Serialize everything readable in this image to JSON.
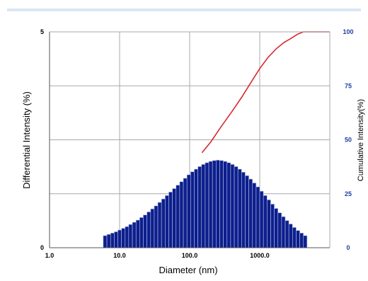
{
  "chart_data": {
    "type": "bar",
    "title": "",
    "xlabel": "Diameter (nm)",
    "ylabel": "Differential Intensity (%)",
    "y2label": "Cumulative Intensity(%)",
    "x_scale": "log",
    "xlim": [
      1,
      10000
    ],
    "ylim": [
      0,
      5
    ],
    "y2lim": [
      0,
      100
    ],
    "x_tick_labels": [
      "1.0",
      "10.0",
      "100.0",
      "1000.0"
    ],
    "y_tick_labels": [
      "0",
      "5"
    ],
    "y2_tick_labels": [
      "0",
      "25",
      "50",
      "75",
      "100"
    ],
    "grid": true,
    "colors": {
      "bars": "#0d1f8c",
      "bar_edge": "#b8c2e8",
      "cumulative": "#d8282f",
      "right_axis_text": "#1f3ea0",
      "grid": "#a8a8a8",
      "frame_top": "#dbe6f2"
    },
    "series": [
      {
        "name": "",
        "kind": "bar",
        "axis": "left",
        "x": [
          6.2,
          7.0,
          7.9,
          8.9,
          10.0,
          11.3,
          12.7,
          14.3,
          16.2,
          18.2,
          20.5,
          23.1,
          26.1,
          29.4,
          33.1,
          37.3,
          42.1,
          47.4,
          53.4,
          60.2,
          67.9,
          76.5,
          86.2,
          97.2,
          109.5,
          123.4,
          139.1,
          156.8,
          176.7,
          199.2,
          224.5,
          253.0,
          285.1,
          321.4,
          362.2,
          408.2,
          460.1,
          518.5,
          584.4,
          658.7,
          742.3,
          836.7,
          943.0,
          1062.8,
          1197.8,
          1350.0,
          1521.5,
          1714.8,
          1932.7,
          2178.2,
          2454.9,
          2766.8,
          3118.3,
          3514.5,
          3961.0,
          4464.2
        ],
        "values": [
          0.28,
          0.31,
          0.34,
          0.37,
          0.41,
          0.45,
          0.49,
          0.54,
          0.59,
          0.64,
          0.7,
          0.76,
          0.83,
          0.9,
          0.97,
          1.05,
          1.13,
          1.21,
          1.29,
          1.37,
          1.45,
          1.53,
          1.61,
          1.69,
          1.76,
          1.82,
          1.88,
          1.93,
          1.97,
          2.0,
          2.02,
          2.03,
          2.02,
          2.0,
          1.97,
          1.93,
          1.88,
          1.82,
          1.75,
          1.67,
          1.59,
          1.5,
          1.41,
          1.31,
          1.21,
          1.11,
          1.01,
          0.91,
          0.81,
          0.72,
          0.63,
          0.55,
          0.47,
          0.4,
          0.34,
          0.28
        ]
      },
      {
        "name": "",
        "kind": "line",
        "axis": "right",
        "x": [
          150,
          200,
          280,
          400,
          560,
          800,
          1000,
          1300,
          1700,
          2200,
          2800,
          3500,
          4200,
          5000,
          7000,
          10000
        ],
        "values": [
          44,
          49,
          56,
          63,
          70,
          78,
          83,
          88,
          92,
          95,
          97,
          99,
          100,
          100,
          100,
          100
        ]
      }
    ]
  }
}
